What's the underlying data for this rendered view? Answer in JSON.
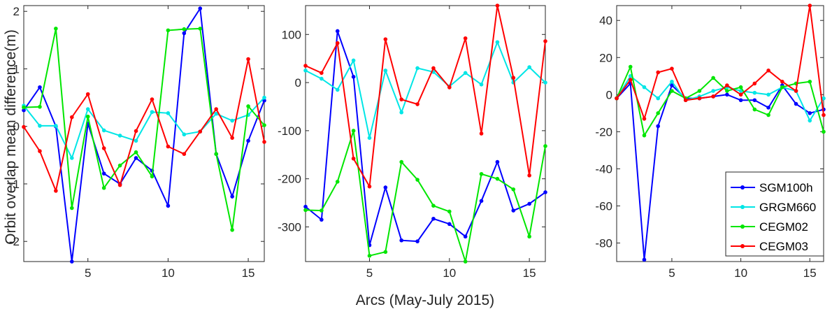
{
  "ylabel": "Orbit overlap mean difference(m)",
  "xlabel": "Arcs (May-July 2015)",
  "legend": {
    "placement": "lower-right of third panel",
    "entries": [
      "SGM100h",
      "GRGM660",
      "CEGM02",
      "CEGM03"
    ]
  },
  "colors": {
    "SGM100h": "#0000ff",
    "GRGM660": "#00e6e6",
    "CEGM02": "#00e600",
    "CEGM03": "#ff0000"
  },
  "chart_data": [
    {
      "type": "line",
      "x": [
        1,
        2,
        3,
        4,
        5,
        6,
        7,
        8,
        9,
        10,
        11,
        12,
        13,
        14,
        15,
        16
      ],
      "xlim": [
        1,
        16
      ],
      "xticks": [
        5,
        10,
        15
      ],
      "ylim": [
        -2.35,
        2.1
      ],
      "yticks": [
        -2,
        -1,
        0,
        1,
        2
      ],
      "grid": false,
      "series": [
        {
          "name": "SGM100h",
          "values": [
            0.28,
            0.68,
            0.0,
            -2.35,
            0.05,
            -0.82,
            -1.0,
            -0.55,
            -0.77,
            -1.38,
            1.62,
            2.05,
            -0.48,
            -1.22,
            -0.25,
            0.45
          ]
        },
        {
          "name": "GRGM660",
          "values": [
            0.36,
            0.01,
            0.01,
            -0.55,
            0.3,
            -0.07,
            -0.16,
            -0.25,
            0.25,
            0.23,
            -0.14,
            -0.09,
            0.22,
            0.1,
            0.2,
            0.5
          ]
        },
        {
          "name": "CEGM02",
          "values": [
            0.33,
            0.34,
            1.7,
            -1.42,
            0.17,
            -1.07,
            -0.68,
            -0.45,
            -0.87,
            1.67,
            1.69,
            1.7,
            -0.48,
            -1.8,
            0.35,
            0.02
          ]
        },
        {
          "name": "CEGM03",
          "values": [
            -0.01,
            -0.43,
            -1.12,
            0.16,
            0.56,
            -0.38,
            -1.02,
            -0.08,
            0.47,
            -0.35,
            -0.48,
            -0.09,
            0.3,
            -0.2,
            1.17,
            -0.27
          ]
        }
      ]
    },
    {
      "type": "line",
      "x": [
        1,
        2,
        3,
        4,
        5,
        6,
        7,
        8,
        9,
        10,
        11,
        12,
        13,
        14,
        15,
        16
      ],
      "xlim": [
        1,
        16
      ],
      "xticks": [
        5,
        10,
        15
      ],
      "ylim": [
        -372,
        160
      ],
      "yticks": [
        -300,
        -200,
        -100,
        0,
        100
      ],
      "grid": false,
      "series": [
        {
          "name": "SGM100h",
          "values": [
            -258,
            -285,
            107,
            12,
            -338,
            -218,
            -328,
            -330,
            -283,
            -294,
            -320,
            -246,
            -165,
            -266,
            -252,
            -228
          ]
        },
        {
          "name": "GRGM660",
          "values": [
            25,
            8,
            -15,
            46,
            -115,
            25,
            -62,
            30,
            22,
            -8,
            20,
            -4,
            84,
            0,
            32,
            0
          ]
        },
        {
          "name": "CEGM02",
          "values": [
            -265,
            -266,
            -206,
            -100,
            -360,
            -352,
            -165,
            -202,
            -256,
            -268,
            -372,
            -190,
            -200,
            -222,
            -320,
            -132
          ]
        },
        {
          "name": "CEGM03",
          "values": [
            35,
            20,
            82,
            -158,
            -216,
            90,
            -35,
            -45,
            30,
            -10,
            92,
            -106,
            160,
            10,
            -193,
            86
          ]
        }
      ]
    },
    {
      "type": "line",
      "x": [
        1,
        2,
        3,
        4,
        5,
        6,
        7,
        8,
        9,
        10,
        11,
        12,
        13,
        14,
        15,
        16
      ],
      "xlim": [
        1,
        16
      ],
      "xticks": [
        5,
        10,
        15
      ],
      "ylim": [
        -90,
        48
      ],
      "yticks": [
        -80,
        -60,
        -40,
        -20,
        0,
        20,
        40
      ],
      "grid": false,
      "series": [
        {
          "name": "SGM100h",
          "values": [
            -2,
            6,
            -89,
            -17,
            5,
            -2,
            -2,
            -1,
            0,
            -3,
            -3,
            -7,
            5,
            -5,
            -10,
            -8
          ]
        },
        {
          "name": "GRGM660",
          "values": [
            -2,
            10,
            4,
            -2,
            7,
            -3,
            -1,
            2,
            4,
            2,
            1,
            0,
            4,
            2,
            -14,
            -2
          ]
        },
        {
          "name": "CEGM02",
          "values": [
            -2,
            15,
            -22,
            -10,
            2,
            -2,
            2,
            9,
            2,
            4,
            -8,
            -11,
            4,
            6,
            7,
            -20
          ]
        },
        {
          "name": "CEGM03",
          "values": [
            -2,
            8,
            -13,
            12,
            14,
            -3,
            -2,
            -1,
            5,
            0,
            6,
            13,
            7,
            2,
            48,
            -11
          ]
        }
      ]
    }
  ]
}
